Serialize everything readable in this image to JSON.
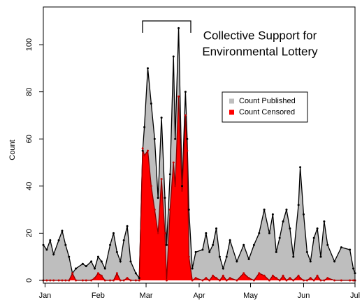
{
  "chart_data": {
    "type": "area",
    "y_label": "Count",
    "annotation": [
      "Collective Support for",
      "Environmental Lottery"
    ],
    "x": [
      -1,
      1,
      3,
      5,
      8,
      10,
      12,
      14,
      16,
      18,
      22,
      24,
      27,
      29,
      31,
      33,
      35,
      38,
      40,
      42,
      44,
      46,
      48,
      50,
      53,
      55,
      57,
      58,
      60,
      62,
      64,
      66,
      68,
      70,
      71,
      73,
      75,
      76,
      78,
      80,
      82,
      83,
      84,
      86,
      88,
      92,
      94,
      96,
      98,
      100,
      102,
      104,
      106,
      108,
      112,
      116,
      119,
      122,
      125,
      128,
      131,
      133,
      135,
      137,
      139,
      141,
      143,
      145,
      148,
      149,
      151,
      153,
      155,
      157,
      159,
      161,
      163,
      165,
      169,
      173,
      178,
      180,
      181
    ],
    "series": [
      {
        "name": "Count Published",
        "color": "#bebebe",
        "values": [
          15,
          13,
          17,
          11,
          17,
          21,
          15,
          10,
          3,
          5,
          7,
          6,
          8,
          5,
          10,
          8,
          5,
          15,
          20,
          12,
          8,
          17,
          23,
          8,
          3,
          1,
          55,
          65,
          90,
          75,
          60,
          35,
          69,
          35,
          15,
          45,
          95,
          60,
          107,
          40,
          80,
          60,
          30,
          5,
          12,
          13,
          20,
          12,
          15,
          22,
          10,
          5,
          10,
          17,
          8,
          15,
          9,
          15,
          20,
          30,
          20,
          28,
          12,
          18,
          25,
          30,
          22,
          10,
          32,
          48,
          28,
          12,
          8,
          18,
          22,
          10,
          25,
          15,
          8,
          14,
          13,
          5,
          3
        ]
      },
      {
        "name": "Count Censored",
        "color": "#ff0000",
        "values": [
          0,
          0,
          0,
          0,
          0,
          0,
          0,
          0,
          3,
          0,
          0,
          0,
          0,
          1,
          3,
          2,
          0,
          0,
          0,
          3,
          0,
          0,
          1,
          0,
          0,
          0,
          56,
          53,
          55,
          40,
          30,
          20,
          43,
          20,
          0,
          30,
          50,
          40,
          78,
          38,
          70,
          55,
          10,
          0,
          1,
          0,
          1,
          0,
          2,
          1,
          0,
          2,
          0,
          1,
          0,
          3,
          1,
          0,
          3,
          2,
          0,
          2,
          1,
          0,
          2,
          0,
          1,
          0,
          2,
          1,
          0,
          0,
          1,
          0,
          2,
          0,
          0,
          1,
          0,
          0,
          0,
          0,
          0
        ]
      }
    ],
    "xlim": [
      -1,
      181
    ],
    "xticks": [
      {
        "value": 0,
        "label": "Jan"
      },
      {
        "value": 31,
        "label": "Feb"
      },
      {
        "value": 59,
        "label": "Mar"
      },
      {
        "value": 90,
        "label": "Apr"
      },
      {
        "value": 120,
        "label": "May"
      },
      {
        "value": 151,
        "label": "Jun"
      },
      {
        "value": 181,
        "label": "Jul"
      }
    ],
    "ylim": [
      -1.2,
      116
    ],
    "yticks": [
      0,
      20,
      40,
      60,
      80,
      100
    ]
  }
}
